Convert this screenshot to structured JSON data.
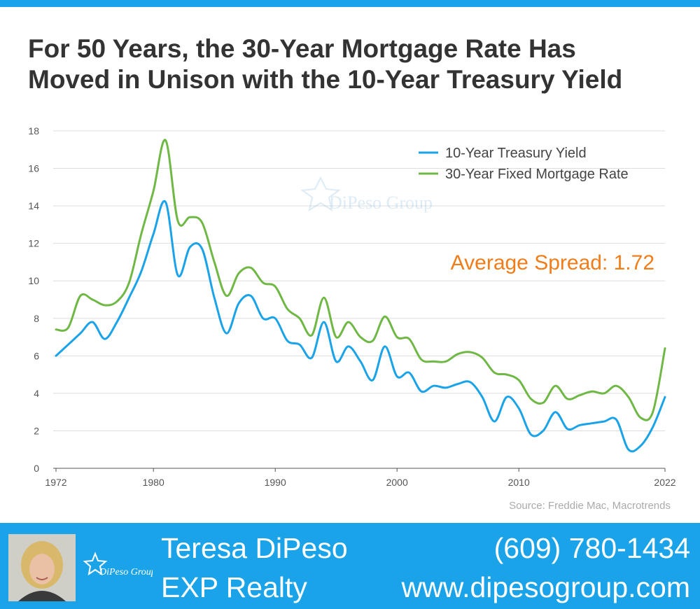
{
  "title_lines": [
    "For 50 Years, the 30-Year Mortgage Rate Has",
    "Moved in Unison with the 10-Year Treasury Yield"
  ],
  "chart_data": {
    "type": "line",
    "title": "For 50 Years, the 30-Year Mortgage Rate Has Moved in Unison with the 10-Year Treasury Yield",
    "xlabel": "",
    "ylabel": "",
    "xlim": [
      1972,
      2022
    ],
    "ylim": [
      0,
      18
    ],
    "x_ticks": [
      1972,
      1980,
      1990,
      2000,
      2010,
      2022
    ],
    "y_ticks": [
      0,
      2,
      4,
      6,
      8,
      10,
      12,
      14,
      16,
      18
    ],
    "grid": "horizontal",
    "legend_position": "top-right",
    "x": [
      1972,
      1973,
      1974,
      1975,
      1976,
      1977,
      1978,
      1979,
      1980,
      1981,
      1982,
      1983,
      1984,
      1985,
      1986,
      1987,
      1988,
      1989,
      1990,
      1991,
      1992,
      1993,
      1994,
      1995,
      1996,
      1997,
      1998,
      1999,
      2000,
      2001,
      2002,
      2003,
      2004,
      2005,
      2006,
      2007,
      2008,
      2009,
      2010,
      2011,
      2012,
      2013,
      2014,
      2015,
      2016,
      2017,
      2018,
      2019,
      2020,
      2021,
      2022
    ],
    "series": [
      {
        "name": "10-Year Treasury Yield",
        "color": "#1aa3e8",
        "values": [
          6.0,
          6.6,
          7.2,
          7.8,
          6.9,
          7.8,
          9.1,
          10.5,
          12.5,
          14.2,
          10.3,
          11.8,
          11.7,
          9.1,
          7.2,
          8.8,
          9.2,
          8.0,
          8.0,
          6.8,
          6.6,
          5.9,
          7.8,
          5.7,
          6.5,
          5.7,
          4.7,
          6.5,
          4.9,
          5.1,
          4.1,
          4.4,
          4.3,
          4.5,
          4.6,
          3.8,
          2.5,
          3.8,
          3.2,
          1.8,
          2.0,
          3.0,
          2.1,
          2.3,
          2.4,
          2.5,
          2.6,
          1.0,
          1.2,
          2.2,
          3.8
        ]
      },
      {
        "name": "30-Year Fixed Mortgage Rate",
        "color": "#70b845",
        "values": [
          7.4,
          7.5,
          9.2,
          9.0,
          8.7,
          8.9,
          9.9,
          12.5,
          14.8,
          17.5,
          13.2,
          13.4,
          13.1,
          11.0,
          9.2,
          10.4,
          10.7,
          9.9,
          9.7,
          8.5,
          8.0,
          7.1,
          9.1,
          7.0,
          7.8,
          7.0,
          6.8,
          8.1,
          7.0,
          6.9,
          5.8,
          5.7,
          5.7,
          6.1,
          6.2,
          5.9,
          5.1,
          5.0,
          4.7,
          3.7,
          3.5,
          4.4,
          3.7,
          3.9,
          4.1,
          4.0,
          4.4,
          3.8,
          2.7,
          3.0,
          6.4
        ]
      }
    ],
    "annotation": "Average Spread: 1.72",
    "source": "Source: Freddie Mac, Macrotrends",
    "watermark": "DiPeso Group"
  },
  "footer": {
    "name": "Teresa DiPeso",
    "company": "EXP Realty",
    "phone": "(609) 780-1434",
    "website": "www.dipesogroup.com",
    "logo_text": "DiPeso Group",
    "background_color": "#1aa3e8"
  }
}
